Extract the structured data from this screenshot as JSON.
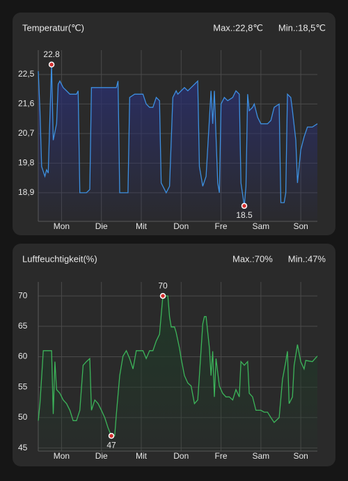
{
  "chart_data": [
    {
      "type": "line",
      "title": "Temperatur(℃)",
      "max_label": "Max.:22,8℃",
      "min_label": "Min.:18,5℃",
      "x": [
        -14,
        -13,
        -12,
        -10,
        -9,
        -8,
        -7,
        -6,
        -5,
        -3,
        -2,
        -1,
        1,
        3,
        5,
        7,
        9,
        10,
        11,
        15,
        17,
        18,
        22,
        26,
        30,
        33,
        34,
        35,
        39,
        40,
        41,
        44,
        47,
        49,
        51,
        53,
        55,
        57,
        59,
        60,
        63,
        65,
        67,
        69,
        70,
        72,
        74,
        76,
        78,
        80,
        82,
        83,
        85,
        87,
        90,
        91,
        92,
        94,
        95,
        96,
        98,
        100,
        103,
        105,
        107,
        108,
        110,
        111,
        112,
        113,
        115,
        116,
        118,
        120,
        122,
        124,
        126,
        128,
        131,
        132,
        134,
        135,
        136,
        138,
        139,
        141,
        142,
        144,
        146,
        148,
        151,
        154
      ],
      "series": [
        {
          "color": "#3d8fe0",
          "values": [
            22.6,
            21.4,
            19.7,
            19.4,
            19.6,
            19.5,
            21.2,
            22.8,
            20.5,
            21.0,
            22.2,
            22.3,
            22.1,
            22.0,
            21.9,
            21.9,
            21.9,
            22.0,
            18.9,
            18.9,
            19.0,
            22.1,
            22.1,
            22.1,
            22.1,
            22.1,
            22.3,
            18.9,
            18.9,
            18.9,
            21.8,
            21.9,
            21.9,
            21.9,
            21.6,
            21.5,
            21.5,
            21.8,
            21.7,
            19.2,
            18.9,
            19.1,
            21.8,
            22.0,
            21.9,
            22.0,
            22.1,
            22.0,
            22.1,
            22.2,
            22.3,
            19.7,
            19.1,
            19.4,
            22.0,
            21.0,
            22.0,
            19.2,
            18.9,
            21.6,
            21.8,
            21.7,
            21.8,
            22.0,
            21.9,
            19.2,
            18.5,
            19.1,
            21.9,
            21.4,
            21.5,
            21.6,
            21.2,
            21.0,
            21.0,
            21.0,
            21.1,
            21.5,
            21.6,
            18.6,
            18.6,
            18.9,
            21.9,
            21.8,
            21.4,
            20.5,
            19.2,
            20.2,
            20.6,
            20.9,
            20.9,
            21.0
          ]
        }
      ],
      "fill_color": "#2a2f6e",
      "annotations": [
        {
          "x": -6,
          "y": 22.8,
          "position": "above"
        },
        {
          "x": 110,
          "y": 18.5,
          "position": "below"
        }
      ],
      "xlim": [
        -14,
        154
      ],
      "xticks": [
        {
          "value": 0,
          "label": "Mon"
        },
        {
          "value": 24,
          "label": "Die"
        },
        {
          "value": 48,
          "label": "Mit"
        },
        {
          "value": 72,
          "label": "Don"
        },
        {
          "value": 96,
          "label": "Fre"
        },
        {
          "value": 120,
          "label": "Sam"
        },
        {
          "value": 144,
          "label": "Son"
        }
      ],
      "ylim": [
        18.03,
        23.24
      ],
      "yticks": [
        {
          "value": 18.9,
          "label": "18,9"
        },
        {
          "value": 19.8,
          "label": "19,8"
        },
        {
          "value": 20.7,
          "label": "20,7"
        },
        {
          "value": 21.6,
          "label": "21,6"
        },
        {
          "value": 22.5,
          "label": "22,5"
        }
      ],
      "grid": true
    },
    {
      "type": "line",
      "title": "Luftfeuchtigkeit(%)",
      "max_label": "Max.:70%",
      "min_label": "Min.:47%",
      "x": [
        -14,
        -13,
        -11,
        -8,
        -6,
        -5,
        -4,
        -3,
        -1,
        1,
        3,
        5,
        7,
        9,
        11,
        13,
        15,
        17,
        18,
        20,
        22,
        24,
        26,
        28,
        30,
        32,
        33,
        35,
        37,
        39,
        41,
        43,
        45,
        47,
        49,
        51,
        53,
        55,
        57,
        59,
        61,
        64,
        65,
        66,
        68,
        69,
        71,
        72,
        74,
        76,
        78,
        80,
        82,
        83,
        85,
        86,
        87,
        89,
        90,
        91,
        92,
        93,
        95,
        97,
        99,
        101,
        103,
        105,
        107,
        108,
        110,
        112,
        113,
        115,
        117,
        120,
        122,
        124,
        126,
        128,
        131,
        133,
        135,
        136,
        137,
        139,
        140,
        142,
        144,
        146,
        147,
        151,
        154
      ],
      "series": [
        {
          "color": "#3cb55a",
          "values": [
            49.5,
            52.3,
            61,
            61,
            61,
            50.6,
            59.2,
            54.6,
            54,
            52.9,
            52.3,
            51.2,
            49.5,
            49.5,
            51.2,
            58.6,
            59.2,
            59.7,
            51.2,
            52.9,
            52.3,
            51.2,
            50,
            48.3,
            47,
            47,
            50.6,
            56.9,
            60.1,
            61,
            59.7,
            58,
            61,
            61,
            61,
            59.7,
            61,
            61,
            62.6,
            63.7,
            70,
            70,
            66.6,
            64.9,
            64.9,
            64,
            61.4,
            59.7,
            56.9,
            55.7,
            55.2,
            52.3,
            52.9,
            56.9,
            65.4,
            66.6,
            66.6,
            61.4,
            56.9,
            60.9,
            53.4,
            59.7,
            55.2,
            54,
            53.4,
            53.4,
            52.9,
            54.6,
            53.4,
            59.2,
            58.6,
            59.2,
            54,
            53.4,
            51.2,
            51.2,
            50.9,
            50.9,
            50,
            49.2,
            50,
            56.3,
            59.2,
            60.9,
            52.3,
            53.4,
            58.6,
            62,
            59.2,
            58,
            59.4,
            59.2,
            60.1
          ]
        }
      ],
      "fill_color": "#1f3a28",
      "annotations": [
        {
          "x": 61,
          "y": 70,
          "position": "above"
        },
        {
          "x": 30,
          "y": 47,
          "position": "below"
        }
      ],
      "xlim": [
        -14,
        154
      ],
      "xticks": [
        {
          "value": 0,
          "label": "Mon"
        },
        {
          "value": 24,
          "label": "Die"
        },
        {
          "value": 48,
          "label": "Mit"
        },
        {
          "value": 72,
          "label": "Don"
        },
        {
          "value": 96,
          "label": "Fre"
        },
        {
          "value": 120,
          "label": "Sam"
        },
        {
          "value": 144,
          "label": "Son"
        }
      ],
      "ylim": [
        44.5,
        72.3
      ],
      "yticks": [
        45,
        50,
        55,
        60,
        65,
        70
      ],
      "grid": true
    }
  ]
}
